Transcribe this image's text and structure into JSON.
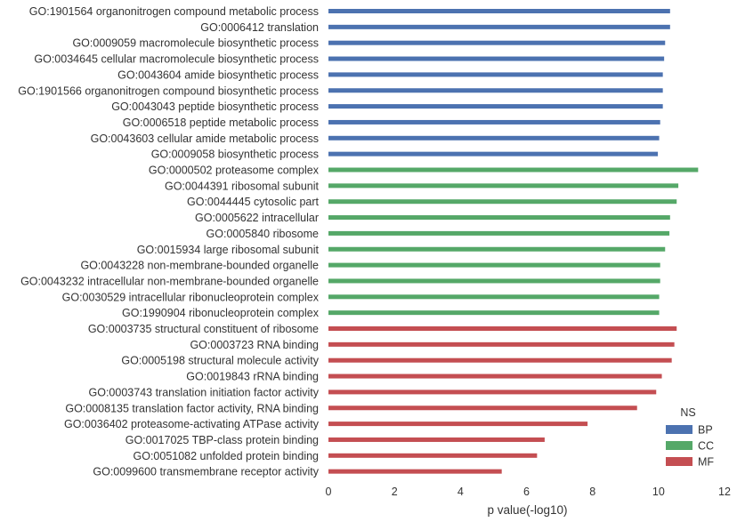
{
  "chart_data": {
    "type": "bar",
    "orientation": "horizontal",
    "xlabel": "p value(-log10)",
    "ylabel": "",
    "title": "",
    "xlim": [
      0,
      12
    ],
    "x_ticks": [
      0,
      2,
      4,
      6,
      8,
      10,
      12
    ],
    "grid": false,
    "legend": {
      "title": "NS",
      "placement": "lower-right",
      "entries": [
        {
          "name": "BP",
          "color": "#4c72b0"
        },
        {
          "name": "CC",
          "color": "#55a868"
        },
        {
          "name": "MF",
          "color": "#c44e52"
        }
      ]
    },
    "bars": [
      {
        "label": "GO:1901564 organonitrogen compound metabolic process",
        "value": 10.35,
        "ns": "BP"
      },
      {
        "label": "GO:0006412 translation",
        "value": 10.35,
        "ns": "BP"
      },
      {
        "label": "GO:0009059 macromolecule biosynthetic process",
        "value": 10.2,
        "ns": "BP"
      },
      {
        "label": "GO:0034645 cellular macromolecule biosynthetic process",
        "value": 10.17,
        "ns": "BP"
      },
      {
        "label": "GO:0043604 amide biosynthetic process",
        "value": 10.13,
        "ns": "BP"
      },
      {
        "label": "GO:1901566 organonitrogen compound biosynthetic process",
        "value": 10.13,
        "ns": "BP"
      },
      {
        "label": "GO:0043043 peptide biosynthetic process",
        "value": 10.13,
        "ns": "BP"
      },
      {
        "label": "GO:0006518 peptide metabolic process",
        "value": 10.05,
        "ns": "BP"
      },
      {
        "label": "GO:0043603 cellular amide metabolic process",
        "value": 10.02,
        "ns": "BP"
      },
      {
        "label": "GO:0009058 biosynthetic process",
        "value": 9.98,
        "ns": "BP"
      },
      {
        "label": "GO:0000502 proteasome complex",
        "value": 11.2,
        "ns": "CC"
      },
      {
        "label": "GO:0044391 ribosomal subunit",
        "value": 10.6,
        "ns": "CC"
      },
      {
        "label": "GO:0044445 cytosolic part",
        "value": 10.55,
        "ns": "CC"
      },
      {
        "label": "GO:0005622 intracellular",
        "value": 10.35,
        "ns": "CC"
      },
      {
        "label": "GO:0005840 ribosome",
        "value": 10.33,
        "ns": "CC"
      },
      {
        "label": "GO:0015934 large ribosomal subunit",
        "value": 10.2,
        "ns": "CC"
      },
      {
        "label": "GO:0043228 non-membrane-bounded organelle",
        "value": 10.05,
        "ns": "CC"
      },
      {
        "label": "GO:0043232 intracellular non-membrane-bounded organelle",
        "value": 10.05,
        "ns": "CC"
      },
      {
        "label": "GO:0030529 intracellular ribonucleoprotein complex",
        "value": 10.02,
        "ns": "CC"
      },
      {
        "label": "GO:1990904 ribonucleoprotein complex",
        "value": 10.02,
        "ns": "CC"
      },
      {
        "label": "GO:0003735 structural constituent of ribosome",
        "value": 10.55,
        "ns": "MF"
      },
      {
        "label": "GO:0003723 RNA binding",
        "value": 10.48,
        "ns": "MF"
      },
      {
        "label": "GO:0005198 structural molecule activity",
        "value": 10.4,
        "ns": "MF"
      },
      {
        "label": "GO:0019843 rRNA binding",
        "value": 10.1,
        "ns": "MF"
      },
      {
        "label": "GO:0003743 translation initiation factor activity",
        "value": 9.93,
        "ns": "MF"
      },
      {
        "label": "GO:0008135 translation factor activity, RNA binding",
        "value": 9.35,
        "ns": "MF"
      },
      {
        "label": "GO:0036402 proteasome-activating ATPase activity",
        "value": 7.85,
        "ns": "MF"
      },
      {
        "label": "GO:0017025 TBP-class protein binding",
        "value": 6.55,
        "ns": "MF"
      },
      {
        "label": "GO:0051082 unfolded protein binding",
        "value": 6.32,
        "ns": "MF"
      },
      {
        "label": "GO:0099600 transmembrane receptor activity",
        "value": 5.25,
        "ns": "MF"
      }
    ]
  }
}
